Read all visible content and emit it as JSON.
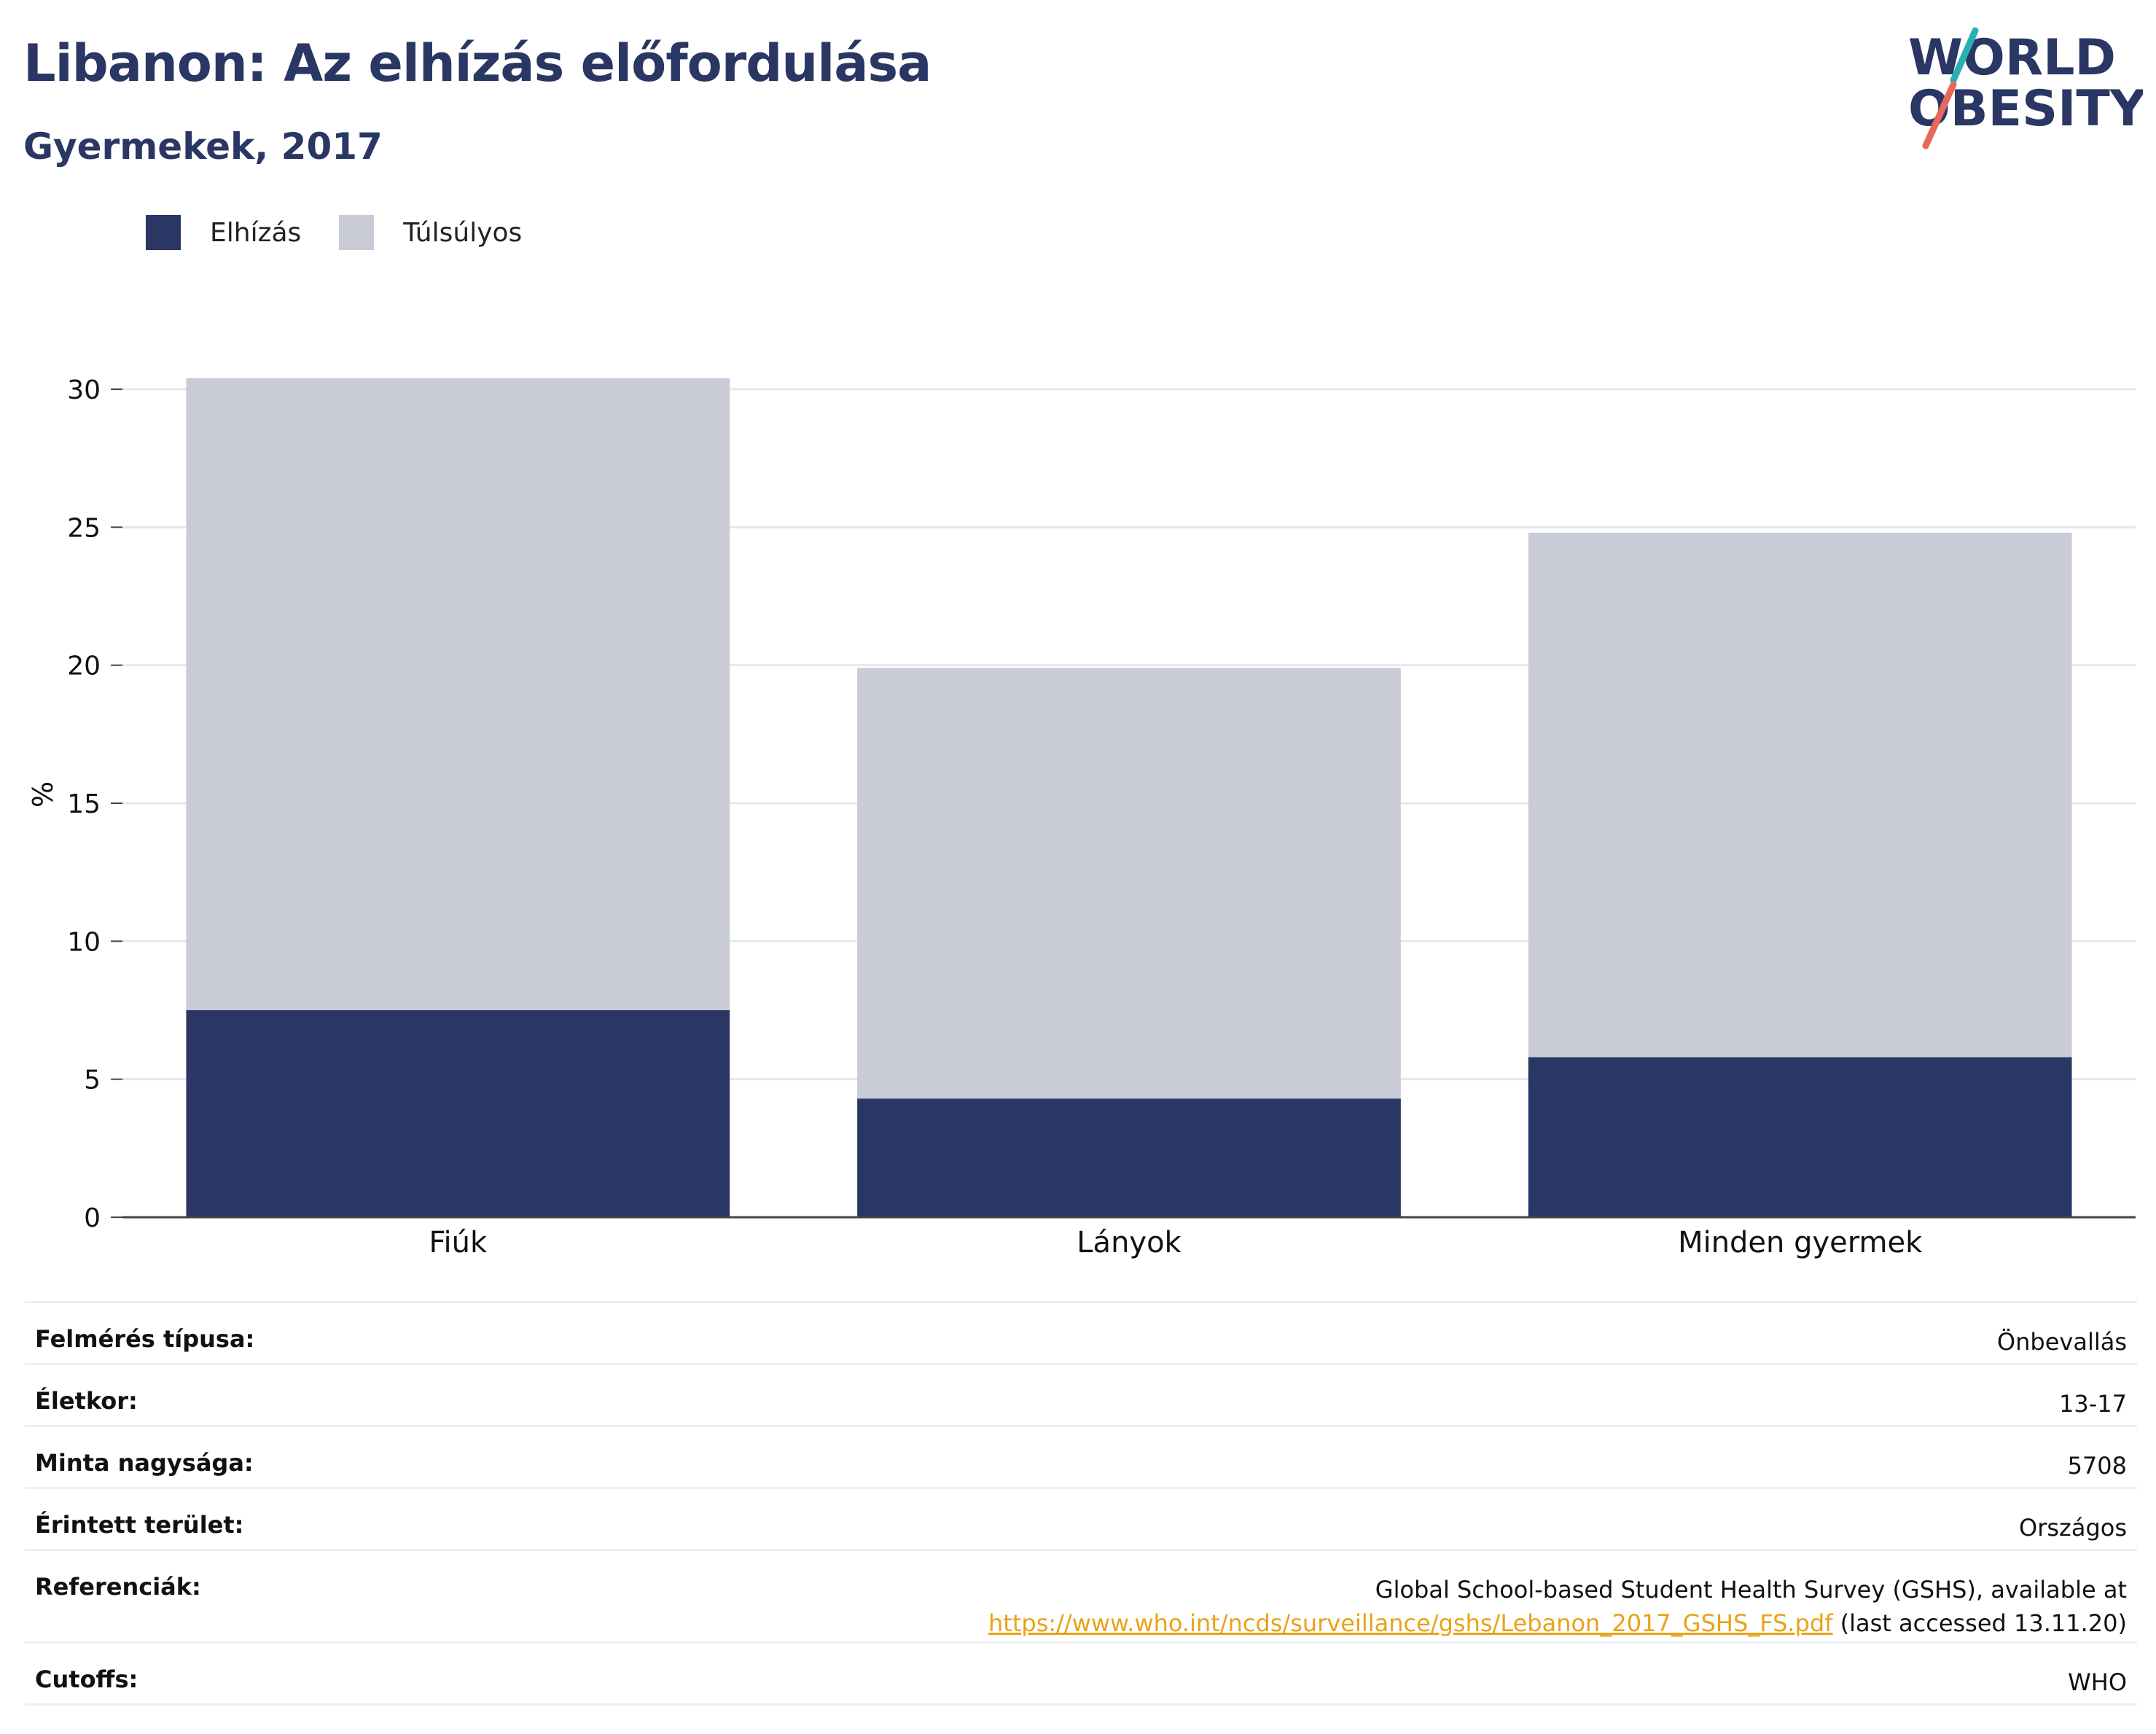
{
  "title": "Libanon: Az elhízás előfordulása",
  "subtitle": "Gyermekek, 2017",
  "logo": {
    "line1": "WORLD",
    "line2": "OBESITY",
    "colors": {
      "text": "#2a3663",
      "slash_top": "#2ab0b4",
      "slash_bottom": "#e8685a"
    }
  },
  "legend": [
    {
      "label": "Elhízás",
      "color": "#2a3663"
    },
    {
      "label": "Túlsúlyos",
      "color": "#c9cbd7"
    }
  ],
  "chart_data": {
    "type": "bar",
    "stacked": true,
    "categories": [
      "Fiúk",
      "Lányok",
      "Minden gyermek"
    ],
    "series": [
      {
        "name": "Elhízás",
        "values": [
          7.5,
          4.3,
          5.8
        ],
        "color": "#2a3663"
      },
      {
        "name": "Túlsúlyos",
        "values": [
          22.9,
          15.6,
          19.0
        ],
        "color": "#c9cbd7"
      }
    ],
    "ylabel": "%",
    "ylim": [
      0,
      30
    ],
    "yticks": [
      "0",
      "5",
      "10",
      "15",
      "20",
      "25",
      "30"
    ],
    "grid": true
  },
  "meta": [
    {
      "key": "Felmérés típusa:",
      "value": "Önbevallás"
    },
    {
      "key": "Életkor:",
      "value": "13-17"
    },
    {
      "key": "Minta nagysága:",
      "value": "5708"
    },
    {
      "key": "Érintett terület:",
      "value": "Országos"
    },
    {
      "key": "Referenciák:",
      "value_line1": "Global School-based Student Health Survey (GSHS), available at",
      "link": "https://www.who.int/ncds/surveillance/gshs/Lebanon_2017_GSHS_FS.pdf",
      "value_after_link": " (last accessed 13.11.20)"
    },
    {
      "key": "Cutoffs:",
      "value": "WHO"
    }
  ]
}
